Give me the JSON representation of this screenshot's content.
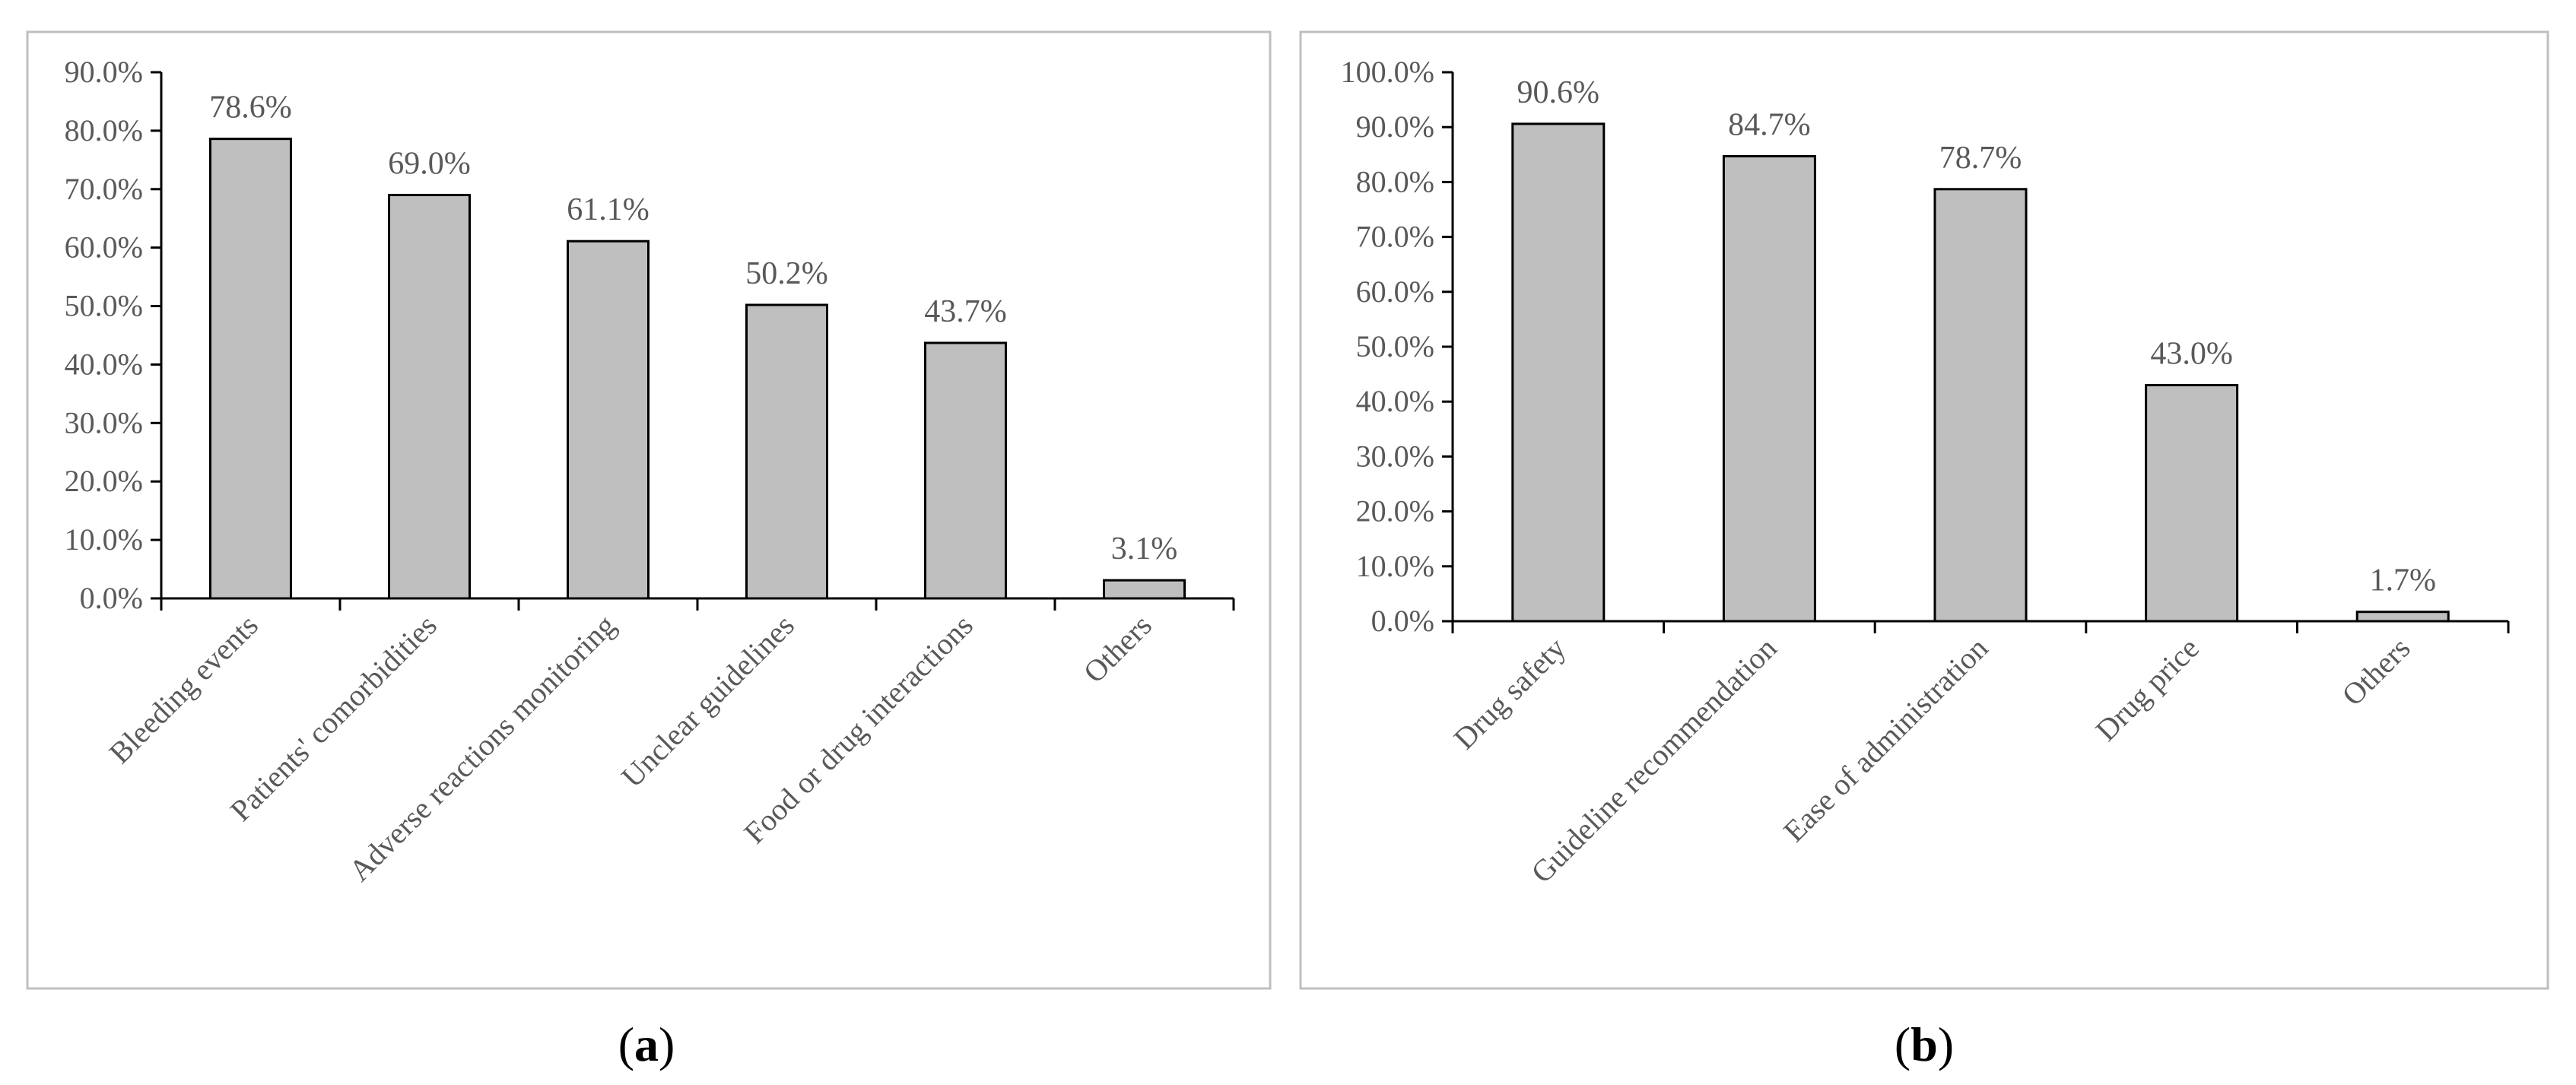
{
  "colors": {
    "bar_fill": "#bfbfbf",
    "bar_stroke": "#000000",
    "axis": "#000000",
    "frame": "#bfbfbf",
    "text": "#595959"
  },
  "chart_data": [
    {
      "type": "bar",
      "panel_label": "a",
      "categories": [
        "Bleeding events",
        "Patients' comorbidities",
        "Adverse reactions monitoring",
        "Unclear guidelines",
        "Food or drug interactions",
        "Others"
      ],
      "values": [
        78.6,
        69.0,
        61.1,
        50.2,
        43.7,
        3.1
      ],
      "data_labels": [
        "78.6%",
        "69.0%",
        "61.1%",
        "50.2%",
        "43.7%",
        "3.1%"
      ],
      "y_ticks": [
        "0.0%",
        "10.0%",
        "20.0%",
        "30.0%",
        "40.0%",
        "50.0%",
        "60.0%",
        "70.0%",
        "80.0%",
        "90.0%"
      ],
      "ylim": [
        0,
        90
      ],
      "grid": false,
      "legend": "none"
    },
    {
      "type": "bar",
      "panel_label": "b",
      "categories": [
        "Drug safety",
        "Guideline recommendation",
        "Ease of administration",
        "Drug price",
        "Others"
      ],
      "values": [
        90.6,
        84.7,
        78.7,
        43.0,
        1.7
      ],
      "data_labels": [
        "90.6%",
        "84.7%",
        "78.7%",
        "43.0%",
        "1.7%"
      ],
      "y_ticks": [
        "0.0%",
        "10.0%",
        "20.0%",
        "30.0%",
        "40.0%",
        "50.0%",
        "60.0%",
        "70.0%",
        "80.0%",
        "90.0%",
        "100.0%"
      ],
      "ylim": [
        0,
        100
      ],
      "grid": false,
      "legend": "none"
    }
  ]
}
